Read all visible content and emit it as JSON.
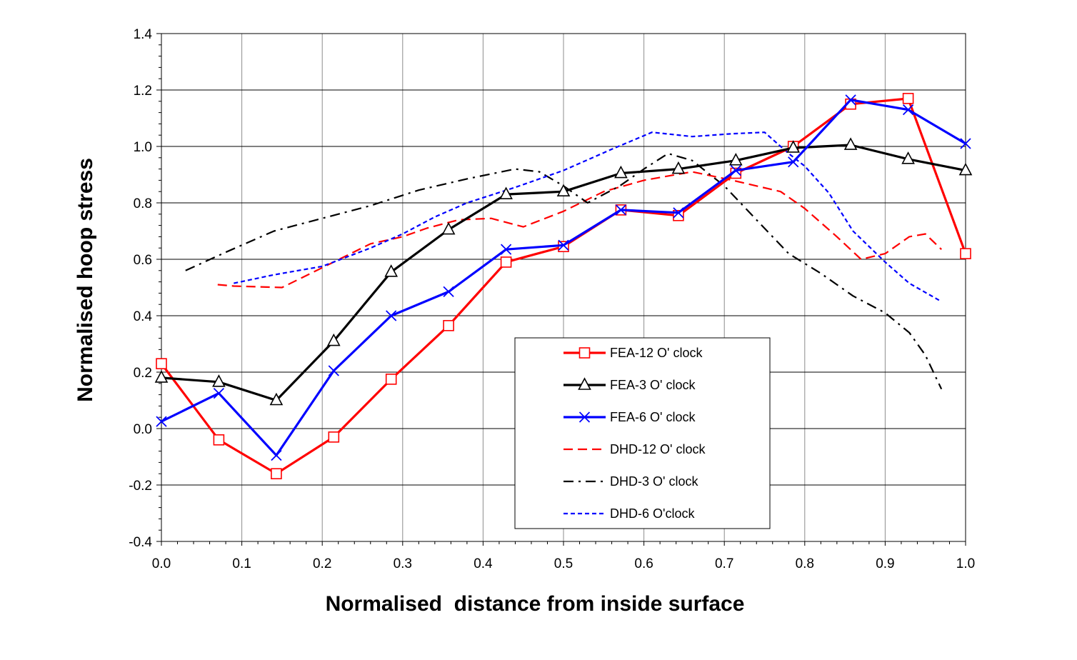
{
  "chart_data": {
    "type": "line",
    "title": "",
    "xlabel": "Normalised  distance from inside surface",
    "ylabel": "Normalised hoop stress",
    "xlim": [
      0,
      1
    ],
    "ylim": [
      -0.4,
      1.4
    ],
    "xticks": [
      "0.0",
      "0.1",
      "0.2",
      "0.3",
      "0.4",
      "0.5",
      "0.6",
      "0.7",
      "0.8",
      "0.9",
      "1.0"
    ],
    "yticks": [
      "-0.4",
      "-0.2",
      "0.0",
      "0.2",
      "0.4",
      "0.6",
      "0.8",
      "1.0",
      "1.2",
      "1.4"
    ],
    "grid": true,
    "legend_position": "bottom-right",
    "series": [
      {
        "name": "FEA-12 O' clock",
        "color": "#ff0000",
        "line_style": "solid",
        "marker": "square",
        "x": [
          0,
          0.0714,
          0.1429,
          0.2143,
          0.2857,
          0.3571,
          0.4286,
          0.5,
          0.5714,
          0.6429,
          0.7143,
          0.7857,
          0.8571,
          0.9286,
          1.0
        ],
        "y": [
          0.23,
          -0.04,
          -0.16,
          -0.03,
          0.175,
          0.365,
          0.59,
          0.645,
          0.775,
          0.755,
          0.905,
          1.0,
          1.15,
          1.17,
          0.62
        ]
      },
      {
        "name": "FEA-3 O' clock",
        "color": "#000000",
        "line_style": "solid",
        "marker": "triangle",
        "x": [
          0,
          0.0714,
          0.1429,
          0.2143,
          0.2857,
          0.3571,
          0.4286,
          0.5,
          0.5714,
          0.6429,
          0.7143,
          0.7857,
          0.8571,
          0.9286,
          1.0
        ],
        "y": [
          0.18,
          0.165,
          0.1,
          0.31,
          0.555,
          0.705,
          0.83,
          0.84,
          0.905,
          0.92,
          0.95,
          0.995,
          1.005,
          0.955,
          0.915
        ]
      },
      {
        "name": "FEA-6 O' clock",
        "color": "#0000ff",
        "line_style": "solid",
        "marker": "x",
        "x": [
          0,
          0.0714,
          0.1429,
          0.2143,
          0.2857,
          0.3571,
          0.4286,
          0.5,
          0.5714,
          0.6429,
          0.7143,
          0.7857,
          0.8571,
          0.9286,
          1.0
        ],
        "y": [
          0.025,
          0.125,
          -0.095,
          0.205,
          0.4,
          0.485,
          0.635,
          0.65,
          0.775,
          0.765,
          0.915,
          0.945,
          1.165,
          1.13,
          1.01
        ]
      },
      {
        "name": "DHD-12 O' clock",
        "color": "#ff0000",
        "line_style": "dashed",
        "marker": "none",
        "x": [
          0.07,
          0.09,
          0.15,
          0.2,
          0.26,
          0.3,
          0.33,
          0.37,
          0.41,
          0.45,
          0.5,
          0.55,
          0.6,
          0.66,
          0.71,
          0.77,
          0.8,
          0.84,
          0.87,
          0.9,
          0.93,
          0.95,
          0.97
        ],
        "y": [
          0.51,
          0.505,
          0.5,
          0.57,
          0.655,
          0.68,
          0.71,
          0.74,
          0.745,
          0.715,
          0.77,
          0.84,
          0.88,
          0.91,
          0.88,
          0.84,
          0.78,
          0.68,
          0.6,
          0.62,
          0.68,
          0.69,
          0.635
        ]
      },
      {
        "name": "DHD-3 O' clock",
        "color": "#000000",
        "line_style": "dashdot",
        "marker": "none",
        "x": [
          0.03,
          0.08,
          0.14,
          0.2,
          0.26,
          0.32,
          0.38,
          0.44,
          0.47,
          0.5,
          0.53,
          0.57,
          0.6,
          0.63,
          0.66,
          0.7,
          0.74,
          0.78,
          0.82,
          0.86,
          0.9,
          0.93,
          0.95,
          0.97
        ],
        "y": [
          0.56,
          0.625,
          0.7,
          0.745,
          0.79,
          0.845,
          0.885,
          0.92,
          0.91,
          0.86,
          0.8,
          0.86,
          0.92,
          0.975,
          0.95,
          0.86,
          0.74,
          0.62,
          0.55,
          0.47,
          0.41,
          0.34,
          0.26,
          0.14
        ]
      },
      {
        "name": "DHD-6 O'clock",
        "color": "#0000ff",
        "line_style": "dotted",
        "marker": "none",
        "x": [
          0.09,
          0.14,
          0.2,
          0.26,
          0.3,
          0.34,
          0.38,
          0.44,
          0.5,
          0.56,
          0.61,
          0.66,
          0.71,
          0.75,
          0.78,
          0.8,
          0.83,
          0.86,
          0.9,
          0.93,
          0.97
        ],
        "y": [
          0.515,
          0.545,
          0.575,
          0.64,
          0.69,
          0.75,
          0.8,
          0.855,
          0.915,
          0.99,
          1.05,
          1.035,
          1.045,
          1.05,
          0.975,
          0.93,
          0.835,
          0.7,
          0.59,
          0.515,
          0.45
        ]
      }
    ]
  }
}
